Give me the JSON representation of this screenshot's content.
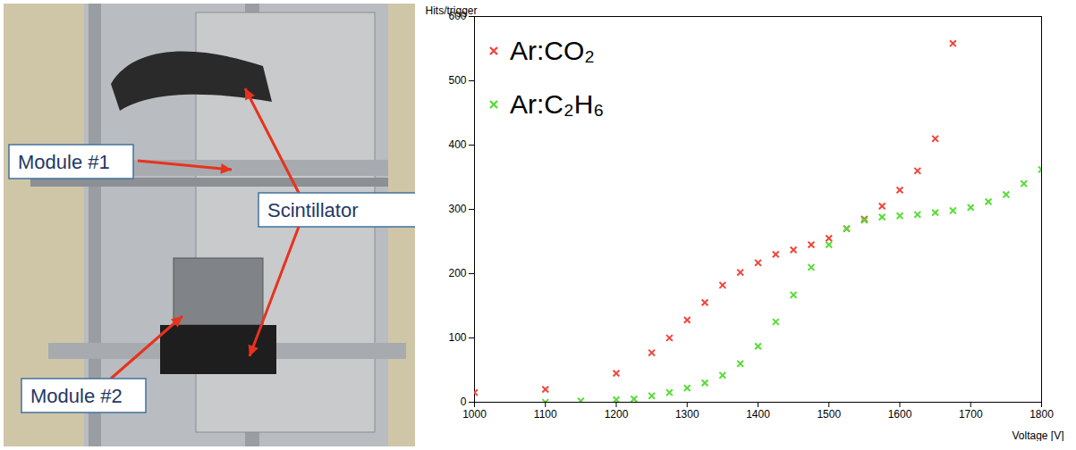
{
  "photo": {
    "labels": [
      "Module #1",
      "Scintillator",
      "Module #2"
    ]
  },
  "chart_data": {
    "type": "scatter",
    "x_label": "Voltage [V]",
    "y_label": "Hits/trigger",
    "xlim": [
      1000,
      1800
    ],
    "xticks": [
      1000,
      1100,
      1200,
      1300,
      1400,
      1500,
      1600,
      1700,
      1800
    ],
    "ylim": [
      0,
      600
    ],
    "yticks": [
      0,
      100,
      200,
      300,
      400,
      500,
      600
    ],
    "legend": "top-left",
    "grid": false,
    "marker": "x",
    "series": [
      {
        "name": "Ar:CO₂",
        "color": "#f0463c",
        "x": [
          1000,
          1100,
          1200,
          1250,
          1275,
          1300,
          1325,
          1350,
          1375,
          1400,
          1425,
          1450,
          1475,
          1500,
          1525,
          1550,
          1575,
          1600,
          1625,
          1650,
          1675
        ],
        "values": [
          15,
          20,
          45,
          77,
          100,
          128,
          155,
          182,
          202,
          217,
          230,
          237,
          245,
          255,
          270,
          285,
          305,
          330,
          360,
          410,
          558
        ]
      },
      {
        "name": "Ar:C₂H₆",
        "color": "#55dd33",
        "x": [
          1100,
          1150,
          1200,
          1225,
          1250,
          1275,
          1300,
          1325,
          1350,
          1375,
          1400,
          1425,
          1450,
          1475,
          1500,
          1525,
          1550,
          1575,
          1600,
          1625,
          1650,
          1675,
          1700,
          1725,
          1750,
          1775,
          1800
        ],
        "values": [
          0,
          2,
          4,
          5,
          10,
          15,
          22,
          30,
          42,
          60,
          87,
          125,
          167,
          210,
          245,
          270,
          283,
          288,
          290,
          292,
          295,
          298,
          303,
          312,
          323,
          340,
          362
        ]
      }
    ]
  }
}
